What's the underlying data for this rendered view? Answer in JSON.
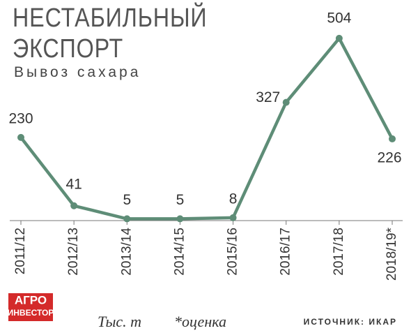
{
  "chart_data": {
    "type": "line",
    "title": "НЕСТАБИЛЬНЫЙ ЭКСПОРТ",
    "subtitle": "Вывоз сахара",
    "categories": [
      "2011/12",
      "2012/13",
      "2013/14",
      "2014/15",
      "2015/16",
      "2016/17",
      "2017/18",
      "2018/19*"
    ],
    "values": [
      230,
      41,
      5,
      5,
      8,
      327,
      504,
      226
    ],
    "color": "#5e8d77",
    "unit_note": "Тыс. т",
    "footnote": "*оценка",
    "source": "ИСТОЧНИК: ИКАР"
  },
  "logo": {
    "lines": [
      "АГРО",
      "ИНВЕСТОР"
    ],
    "color": "#d42a2a"
  }
}
